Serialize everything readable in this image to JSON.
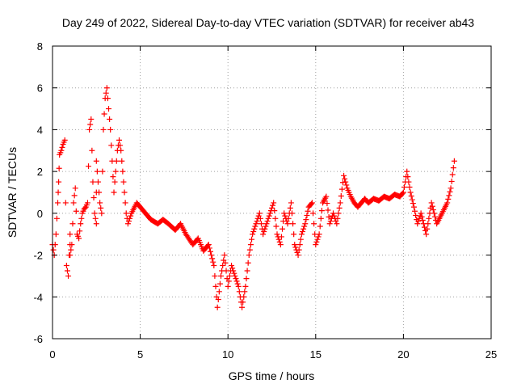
{
  "chart_data": {
    "type": "scatter",
    "title": "Day 249 of 2022, Sidereal Day-to-day VTEC variation (SDTVAR) for receiver ab43",
    "xlabel": "GPS time / hours",
    "ylabel": "SDTVAR / TECUs",
    "xlim": [
      0,
      25
    ],
    "ylim": [
      -6,
      8
    ],
    "xticks": [
      0,
      5,
      10,
      15,
      20,
      25
    ],
    "yticks": [
      -6,
      -4,
      -2,
      0,
      2,
      4,
      6,
      8
    ],
    "xtick_labels": [
      "0",
      "5",
      "10",
      "15",
      "20",
      "25"
    ],
    "ytick_labels": [
      "-6",
      "-4",
      "-2",
      "0",
      "2",
      "4",
      "6",
      "8"
    ],
    "grid": true,
    "marker": "plus",
    "color": "#ff0000",
    "series": [
      {
        "name": "ab43",
        "x": [
          0.0,
          0.1,
          0.2,
          0.3,
          0.35,
          0.4,
          0.5,
          0.6,
          0.7,
          0.8,
          0.9,
          1.0,
          1.0,
          1.1,
          1.2,
          1.3,
          1.4,
          1.5,
          1.6,
          1.7,
          1.8,
          1.9,
          2.0,
          2.1,
          2.2,
          2.3,
          2.4,
          2.5,
          2.5,
          2.6,
          2.7,
          2.8,
          2.9,
          3.0,
          3.1,
          3.2,
          3.3,
          3.4,
          3.5,
          3.6,
          3.7,
          3.8,
          3.9,
          4.0,
          4.1,
          4.2,
          4.3,
          4.5,
          4.8,
          5.0,
          5.3,
          5.6,
          6.0,
          6.3,
          6.6,
          7.0,
          7.3,
          7.6,
          8.0,
          8.3,
          8.6,
          8.9,
          9.2,
          9.4,
          9.6,
          9.8,
          10.0,
          10.2,
          10.4,
          10.6,
          10.8,
          11.0,
          11.2,
          11.4,
          11.6,
          11.8,
          12.0,
          12.2,
          12.4,
          12.6,
          12.8,
          13.0,
          13.2,
          13.4,
          13.6,
          13.8,
          14.0,
          14.2,
          14.4,
          14.6,
          14.8,
          15.0,
          15.2,
          15.4,
          15.6,
          15.8,
          16.0,
          16.2,
          16.4,
          16.6,
          16.8,
          17.0,
          17.2,
          17.4,
          17.6,
          17.8,
          18.0,
          18.3,
          18.6,
          18.9,
          19.2,
          19.5,
          19.8,
          20.0,
          20.2,
          20.4,
          20.6,
          20.8,
          21.0,
          21.3,
          21.6,
          21.9,
          22.2,
          22.5,
          22.7,
          22.9
        ],
        "y": [
          -1.5,
          -2.0,
          -1.0,
          0.5,
          1.5,
          2.8,
          3.0,
          3.3,
          3.5,
          -2.5,
          -3.0,
          -1.0,
          -2.0,
          -1.5,
          0.5,
          1.2,
          -1.0,
          -1.2,
          -0.5,
          0.0,
          0.2,
          0.3,
          0.5,
          4.0,
          4.5,
          1.5,
          0.0,
          -0.5,
          2.5,
          1.5,
          0.5,
          0.0,
          4.0,
          5.5,
          6.0,
          5.0,
          4.0,
          2.5,
          1.0,
          2.0,
          3.0,
          3.5,
          3.0,
          2.0,
          1.0,
          0.0,
          -0.5,
          0.0,
          0.5,
          0.3,
          0.0,
          -0.3,
          -0.5,
          -0.3,
          -0.5,
          -0.8,
          -0.5,
          -1.0,
          -1.5,
          -1.2,
          -1.8,
          -1.5,
          -2.5,
          -4.5,
          -3.0,
          -2.0,
          -3.5,
          -2.5,
          -3.0,
          -3.5,
          -4.5,
          -3.5,
          -2.0,
          -1.0,
          -0.5,
          0.0,
          -1.0,
          -0.5,
          0.0,
          0.5,
          -1.0,
          -1.5,
          0.0,
          -0.5,
          0.5,
          -1.5,
          -2.0,
          -1.0,
          -0.5,
          0.3,
          0.5,
          -1.5,
          -1.0,
          0.5,
          0.8,
          -0.5,
          0.0,
          -0.5,
          0.5,
          1.8,
          1.2,
          0.8,
          0.5,
          0.3,
          0.5,
          0.7,
          0.5,
          0.7,
          0.6,
          0.8,
          0.7,
          0.9,
          0.8,
          1.0,
          2.0,
          1.0,
          0.3,
          -0.5,
          0.0,
          -1.0,
          0.5,
          -0.5,
          0.0,
          0.5,
          1.2,
          2.5
        ]
      }
    ]
  }
}
